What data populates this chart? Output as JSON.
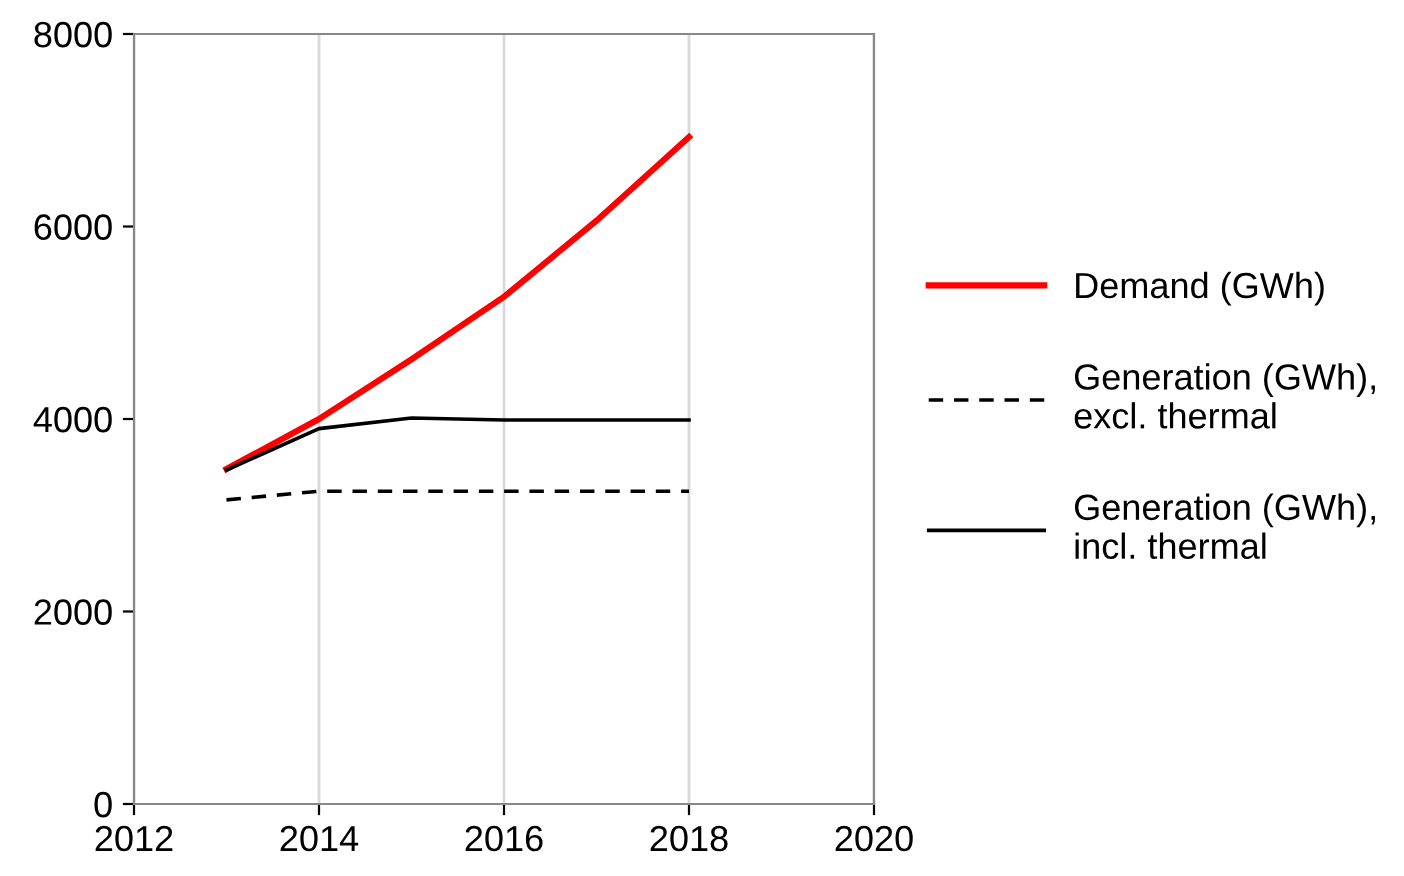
{
  "chart_data": {
    "type": "line",
    "x": [
      2013,
      2014,
      2015,
      2016,
      2017,
      2018
    ],
    "series": [
      {
        "name": "Demand (GWh)",
        "color": "#ff0000",
        "line_style": "solid",
        "values": [
          3480,
          4000,
          4620,
          5270,
          6060,
          6930
        ]
      },
      {
        "name": "Generation (GWh),\nexcl. thermal",
        "color": "#000000",
        "line_style": "dashed",
        "values": [
          3160,
          3250,
          3250,
          3250,
          3250,
          3250
        ]
      },
      {
        "name": "Generation (GWh),\nincl. thermal",
        "color": "#000000",
        "line_style": "solid",
        "values": [
          3470,
          3900,
          4010,
          3990,
          3990,
          3990
        ]
      }
    ],
    "xlim": [
      2012,
      2020
    ],
    "xticks": [
      2012,
      2014,
      2016,
      2018,
      2020
    ],
    "ylim": [
      0,
      8000
    ],
    "yticks": [
      0,
      2000,
      4000,
      6000,
      8000
    ],
    "grid": "x",
    "legend": "right",
    "marker": "none"
  }
}
